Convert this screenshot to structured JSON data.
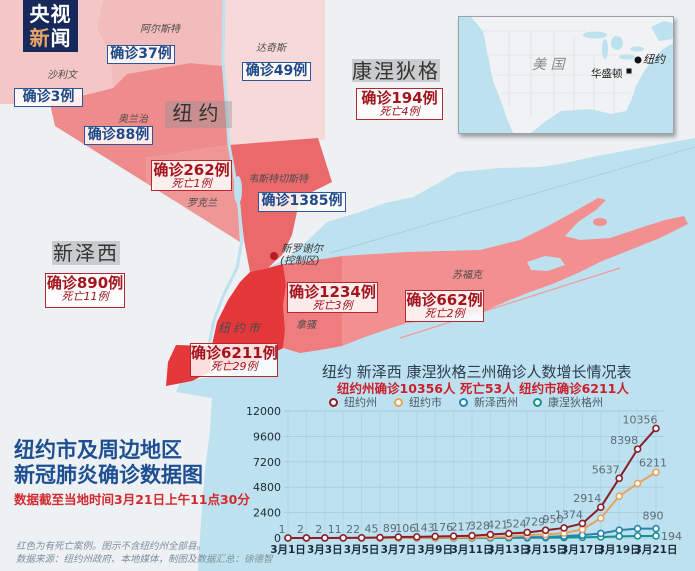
{
  "logo": {
    "line1": "央视",
    "line2_first": "新",
    "line2_second": "闻"
  },
  "map": {
    "state_labels": {
      "new_york": "纽约",
      "connecticut": "康涅狄格",
      "new_jersey": "新泽西"
    },
    "counties": {
      "ulster": {
        "name": "阿尔斯特",
        "cases": "确诊37例",
        "fill": "#f3bcbc"
      },
      "dutchess": {
        "name": "达奇斯",
        "cases": "确诊49例",
        "fill": "#f8d9d9"
      },
      "sullivan": {
        "name": "沙利文",
        "cases": "确诊3例",
        "fill": "#f4c6c6"
      },
      "orange": {
        "name": "奥兰治",
        "cases": "确诊88例",
        "fill": "#ee8b8c"
      },
      "rockland": {
        "name": "罗克兰",
        "cases": "确诊262例",
        "deaths": "死亡1例",
        "fill": "#ef9797"
      },
      "westchester": {
        "name": "韦斯特切斯特",
        "cases": "确诊1385例",
        "fill": "#ea6a6c"
      },
      "nassau": {
        "name": "拿骚",
        "cases": "确诊1234例",
        "deaths": "死亡3例",
        "fill": "#ef7c7e"
      },
      "suffolk": {
        "name": "苏福克",
        "cases": "确诊662例",
        "deaths": "死亡2例",
        "fill": "#f28f90"
      },
      "nyc": {
        "name": "纽约市",
        "cases": "确诊6211例",
        "deaths": "死亡29例",
        "fill": "#e5383b"
      }
    },
    "connecticut": {
      "cases": "确诊194例",
      "deaths": "死亡4例"
    },
    "new_jersey": {
      "cases": "确诊890例",
      "deaths": "死亡11例"
    },
    "new_rochelle": {
      "line1": "新罗谢尔",
      "line2": "(控制区)"
    },
    "colors": {
      "land": "#eef1f4",
      "water": "#bee1ef",
      "case_box_border": "#2b5797",
      "death_box_border": "#b4282e",
      "hotspot_dot": "#b01e22"
    }
  },
  "inset_map": {
    "country": "美   国",
    "new_york": "纽约",
    "washington": "华盛顿"
  },
  "title": {
    "line1": "纽约市及周边地区",
    "line2": "新冠肺炎确诊数据图",
    "updated": "数据截至当地时间3月21日上午11点30分"
  },
  "footnote": {
    "line1": "红色为有死亡案例。图示不含纽约州全部县。",
    "line2": "数据来源：纽约州政府、本地媒体，制图及数据汇总：徐德智"
  },
  "chart_data": {
    "type": "line",
    "title": "纽约 新泽西 康涅狄格三州确诊人数增长情况表",
    "subtitle": "纽约州确诊10356人 死亡53人 纽约市确诊6211人",
    "xlabel": "",
    "ylabel": "",
    "x": [
      "3月1日",
      "3月2日",
      "3月3日",
      "3月4日",
      "3月5日",
      "3月6日",
      "3月7日",
      "3月8日",
      "3月9日",
      "3月10日",
      "3月11日",
      "3月12日",
      "3月13日",
      "3月14日",
      "3月15日",
      "3月16日",
      "3月17日",
      "3月18日",
      "3月19日",
      "3月20日",
      "3月21日"
    ],
    "x_tick_labels": [
      "3月1日",
      "3月3日",
      "3月5日",
      "3月7日",
      "3月9日",
      "3月11日",
      "3月13日",
      "3月15日",
      "3月17日",
      "3月19日",
      "3月21日"
    ],
    "yticks": [
      0,
      2400,
      4800,
      7200,
      9600,
      12000
    ],
    "ylim": [
      0,
      12000
    ],
    "grid": true,
    "legend_position": "top",
    "series": [
      {
        "name": "纽约州",
        "color": "#8b1e2b",
        "values": [
          1,
          2,
          2,
          11,
          22,
          45,
          89,
          106,
          143,
          176,
          217,
          328,
          421,
          524,
          729,
          950,
          1374,
          2914,
          5637,
          8398,
          10356
        ],
        "point_labels": [
          "1",
          "2",
          "2",
          "11",
          "22",
          "45",
          "89",
          "106",
          "143",
          "176",
          "217",
          "328",
          "421",
          "524",
          "729",
          "950",
          "1374",
          "2914",
          "5637",
          "8398",
          "10356"
        ]
      },
      {
        "name": "纽约市",
        "color": "#e8a25e",
        "values": [
          1,
          1,
          1,
          1,
          4,
          5,
          12,
          13,
          19,
          36,
          52,
          95,
          154,
          269,
          329,
          463,
          814,
          1871,
          3954,
          5151,
          6211
        ],
        "end_label": "6211"
      },
      {
        "name": "新泽西州",
        "color": "#2385b0",
        "values": [
          0,
          0,
          0,
          1,
          2,
          4,
          4,
          6,
          11,
          15,
          23,
          29,
          50,
          69,
          98,
          178,
          267,
          427,
          742,
          890,
          890
        ],
        "end_label": "890"
      },
      {
        "name": "康涅狄格州",
        "color": "#16938e",
        "values": [
          0,
          0,
          0,
          0,
          0,
          0,
          0,
          1,
          1,
          2,
          3,
          5,
          11,
          20,
          26,
          41,
          68,
          96,
          159,
          194,
          194
        ],
        "end_label": "194"
      }
    ]
  }
}
